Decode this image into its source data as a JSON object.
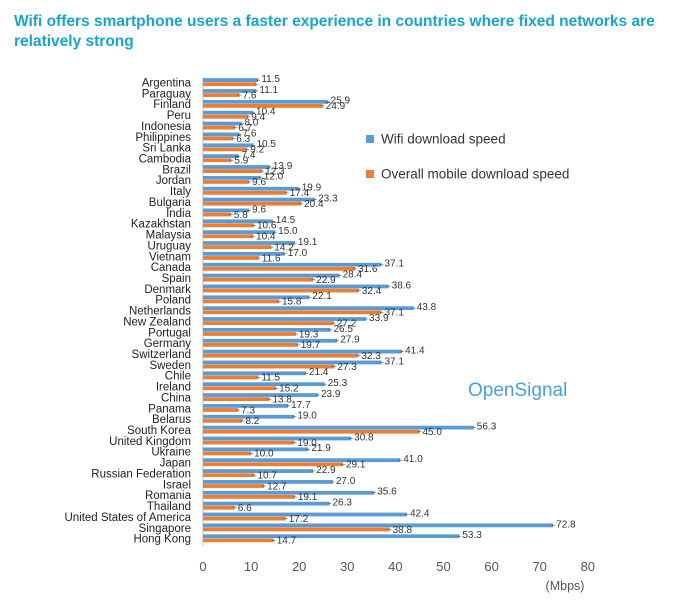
{
  "chart_data": {
    "type": "bar",
    "orientation": "horizontal",
    "title": "Wifi offers smartphone users a faster experience in countries where fixed networks are relatively strong",
    "xlabel": "(Mbps)",
    "xlim": [
      0,
      80
    ],
    "xticks": [
      0,
      10,
      20,
      30,
      40,
      50,
      60,
      70,
      80
    ],
    "grid": false,
    "legend_position": "right",
    "categories": [
      "Argentina",
      "Paraguay",
      "Finland",
      "Peru",
      "Indonesia",
      "Philippines",
      "Sri Lanka",
      "Cambodia",
      "Brazil",
      "Jordan",
      "Italy",
      "Bulgaria",
      "India",
      "Kazakhstan",
      "Malaysia",
      "Uruguay",
      "Vietnam",
      "Canada",
      "Spain",
      "Denmark",
      "Poland",
      "Netherlands",
      "New Zealand",
      "Portugal",
      "Germany",
      "Switzerland",
      "Sweden",
      "Chile",
      "Ireland",
      "China",
      "Panama",
      "Belarus",
      "South Korea",
      "United Kingdom",
      "Ukraine",
      "Japan",
      "Russian Federation",
      "Israel",
      "Romania",
      "Thailand",
      "United States of America",
      "Singapore",
      "Hong Kong"
    ],
    "series": [
      {
        "name": "Wifi download speed",
        "color": "#5b9bd5",
        "values": [
          11.5,
          11.1,
          25.9,
          10.4,
          8.0,
          7.6,
          10.5,
          7.4,
          13.9,
          12.0,
          19.9,
          23.3,
          9.6,
          14.5,
          15.0,
          19.1,
          17.0,
          37.1,
          28.4,
          38.6,
          22.1,
          43.8,
          33.9,
          26.5,
          27.9,
          41.4,
          37.1,
          21.4,
          25.3,
          23.9,
          17.7,
          19.0,
          56.3,
          30.8,
          21.9,
          41.0,
          22.9,
          27.0,
          35.6,
          26.3,
          42.4,
          72.8,
          53.3
        ]
      },
      {
        "name": "Overall mobile download speed",
        "color": "#ed7d31",
        "values": [
          11.1,
          7.6,
          24.9,
          9.4,
          6.7,
          6.3,
          9.2,
          5.9,
          12.3,
          9.6,
          17.4,
          20.4,
          5.8,
          10.6,
          10.4,
          14.2,
          11.6,
          31.6,
          22.9,
          32.4,
          15.8,
          37.1,
          27.2,
          19.3,
          19.7,
          32.3,
          27.3,
          11.5,
          15.2,
          13.8,
          7.3,
          8.2,
          45.0,
          19.0,
          10.0,
          29.1,
          10.7,
          12.7,
          19.1,
          6.6,
          17.2,
          38.8,
          14.7
        ]
      }
    ],
    "value_labels": [
      {
        "wifi": "11.5",
        "mobile": ""
      },
      {
        "wifi": "11.1",
        "mobile": "7.6"
      },
      {
        "wifi": "25.9",
        "mobile": "24.9"
      },
      {
        "wifi": "10.4",
        "mobile": "9.4"
      },
      {
        "wifi": "8.0",
        "mobile": "6.7"
      },
      {
        "wifi": "7.6",
        "mobile": "6.3"
      },
      {
        "wifi": "10.5",
        "mobile": "9.2"
      },
      {
        "wifi": "7.4",
        "mobile": "5.9"
      },
      {
        "wifi": "13.9",
        "mobile": "12.3"
      },
      {
        "wifi": "12.0",
        "mobile": "9.6"
      },
      {
        "wifi": "19.9",
        "mobile": "17.4"
      },
      {
        "wifi": "23.3",
        "mobile": "20.4"
      },
      {
        "wifi": "9.6",
        "mobile": "5.8"
      },
      {
        "wifi": "14.5",
        "mobile": "10.6"
      },
      {
        "wifi": "15.0",
        "mobile": "10.4"
      },
      {
        "wifi": "19.1",
        "mobile": "14.2"
      },
      {
        "wifi": "17.0",
        "mobile": "11.6"
      },
      {
        "wifi": "37.1",
        "mobile": "31.6"
      },
      {
        "wifi": "28.4",
        "mobile": "22.9"
      },
      {
        "wifi": "38.6",
        "mobile": "32.4"
      },
      {
        "wifi": "22.1",
        "mobile": "15.8"
      },
      {
        "wifi": "43.8",
        "mobile": "37.1"
      },
      {
        "wifi": "33.9",
        "mobile": "27.2"
      },
      {
        "wifi": "26.5",
        "mobile": "19.3"
      },
      {
        "wifi": "27.9",
        "mobile": "19.7"
      },
      {
        "wifi": "41.4",
        "mobile": "32.3"
      },
      {
        "wifi": "37.1",
        "mobile": "27.3"
      },
      {
        "wifi": "21.4",
        "mobile": "11.5"
      },
      {
        "wifi": "25.3",
        "mobile": "15.2"
      },
      {
        "wifi": "23.9",
        "mobile": "13.8"
      },
      {
        "wifi": "17.7",
        "mobile": "7.3"
      },
      {
        "wifi": "19.0",
        "mobile": "8.2"
      },
      {
        "wifi": "56.3",
        "mobile": "45.0"
      },
      {
        "wifi": "30.8",
        "mobile": "19.0"
      },
      {
        "wifi": "21.9",
        "mobile": "10.0"
      },
      {
        "wifi": "41.0",
        "mobile": "29.1"
      },
      {
        "wifi": "22.9",
        "mobile": "10.7"
      },
      {
        "wifi": "27.0",
        "mobile": "12.7"
      },
      {
        "wifi": "35.6",
        "mobile": "19.1"
      },
      {
        "wifi": "26.3",
        "mobile": "6.6"
      },
      {
        "wifi": "42.4",
        "mobile": "17.2"
      },
      {
        "wifi": "72.8",
        "mobile": "38.8"
      },
      {
        "wifi": "53.3",
        "mobile": "14.7"
      }
    ]
  },
  "brand": {
    "part1": "Open",
    "part2": "Signal"
  }
}
